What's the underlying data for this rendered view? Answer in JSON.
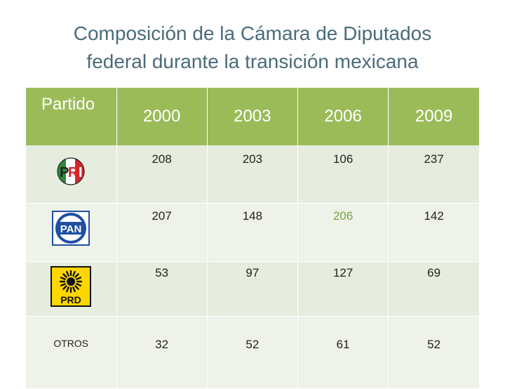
{
  "title": {
    "line1": "Composición de la Cámara de Diputados",
    "line2": "federal durante la transición mexicana"
  },
  "table": {
    "headers": [
      "Partido",
      "2000",
      "2003",
      "2006",
      "2009"
    ],
    "rows": [
      {
        "party": "PRI",
        "logo": "pri-logo-icon",
        "values": [
          "208",
          "203",
          "106",
          "237"
        ]
      },
      {
        "party": "PAN",
        "logo": "pan-logo-icon",
        "values": [
          "207",
          "148",
          "206",
          "142"
        ]
      },
      {
        "party": "PRD",
        "logo": "prd-logo-icon",
        "values": [
          "53",
          "97",
          "127",
          "69"
        ]
      },
      {
        "party": "OTROS",
        "values": [
          "32",
          "52",
          "61",
          "52"
        ]
      }
    ]
  },
  "colors": {
    "header": "#9bbb59",
    "highlight": "#77a23d",
    "title": "#4a6b7a"
  }
}
